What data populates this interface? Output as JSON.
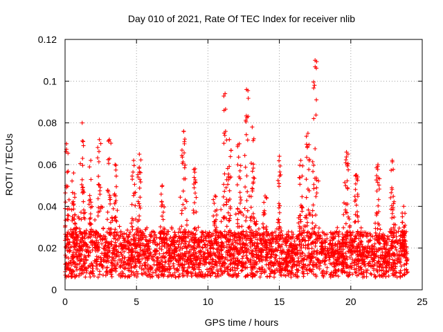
{
  "chart_data": {
    "type": "scatter",
    "title": "Day 010 of 2021, Rate Of TEC Index for receiver nlib",
    "xlabel": "GPS time / hours",
    "ylabel": "ROTI / TECUs",
    "xlim": [
      0,
      25
    ],
    "ylim": [
      0,
      0.12
    ],
    "grid": true,
    "marker": "+",
    "marker_color": "#ff0000",
    "x_ticks": [
      {
        "value": 0,
        "label": "0"
      },
      {
        "value": 5,
        "label": "5"
      },
      {
        "value": 10,
        "label": "10"
      },
      {
        "value": 15,
        "label": "15"
      },
      {
        "value": 20,
        "label": "20"
      },
      {
        "value": 25,
        "label": "25"
      }
    ],
    "y_ticks": [
      {
        "value": 0,
        "label": "0"
      },
      {
        "value": 0.02,
        "label": "0.02"
      },
      {
        "value": 0.04,
        "label": "0.04"
      },
      {
        "value": 0.06,
        "label": "0.06"
      },
      {
        "value": 0.08,
        "label": "0.08"
      },
      {
        "value": 0.1,
        "label": "0.1"
      },
      {
        "value": 0.12,
        "label": "0.12"
      }
    ],
    "x_range_observed": [
      0,
      24
    ],
    "peaks": [
      {
        "x": 0.1,
        "y": 0.07
      },
      {
        "x": 0.6,
        "y": 0.056
      },
      {
        "x": 1.2,
        "y": 0.08
      },
      {
        "x": 1.8,
        "y": 0.062
      },
      {
        "x": 2.4,
        "y": 0.072
      },
      {
        "x": 3.1,
        "y": 0.072
      },
      {
        "x": 3.5,
        "y": 0.06
      },
      {
        "x": 4.8,
        "y": 0.062
      },
      {
        "x": 5.2,
        "y": 0.065
      },
      {
        "x": 6.8,
        "y": 0.05
      },
      {
        "x": 8.3,
        "y": 0.076
      },
      {
        "x": 9.1,
        "y": 0.058
      },
      {
        "x": 10.5,
        "y": 0.045
      },
      {
        "x": 11.2,
        "y": 0.094
      },
      {
        "x": 11.5,
        "y": 0.072
      },
      {
        "x": 12.2,
        "y": 0.07
      },
      {
        "x": 12.7,
        "y": 0.096
      },
      {
        "x": 13.1,
        "y": 0.078
      },
      {
        "x": 14.0,
        "y": 0.045
      },
      {
        "x": 15.0,
        "y": 0.064
      },
      {
        "x": 16.5,
        "y": 0.062
      },
      {
        "x": 17.0,
        "y": 0.075
      },
      {
        "x": 17.5,
        "y": 0.11
      },
      {
        "x": 19.7,
        "y": 0.066
      },
      {
        "x": 20.4,
        "y": 0.055
      },
      {
        "x": 21.9,
        "y": 0.06
      },
      {
        "x": 22.9,
        "y": 0.062
      },
      {
        "x": 23.7,
        "y": 0.04
      }
    ]
  }
}
